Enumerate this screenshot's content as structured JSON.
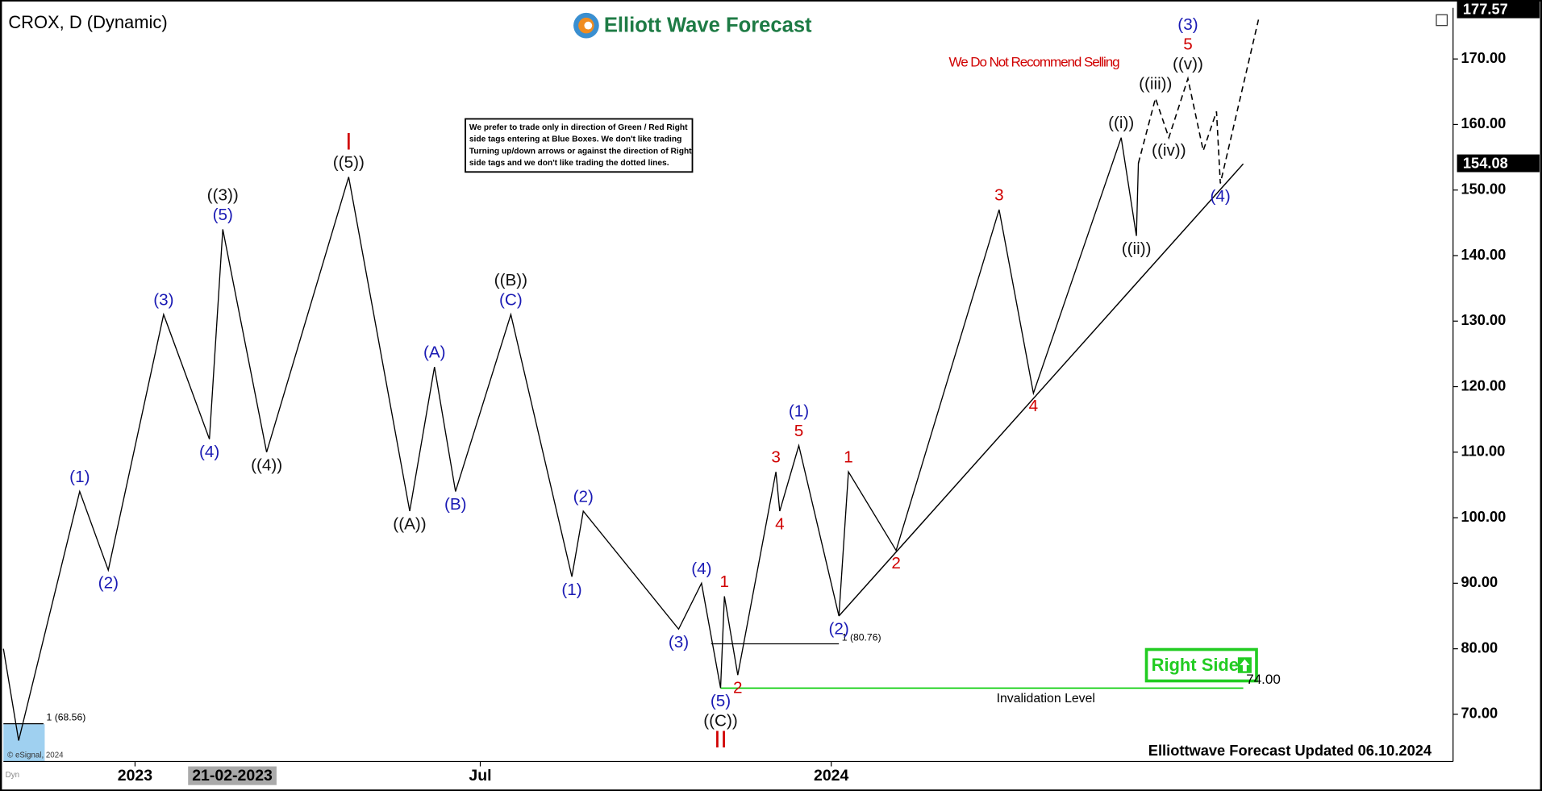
{
  "title": "CROX, D (Dynamic)",
  "logo": "Elliott Wave Forecast",
  "warning": "We Do Not Recommend Selling",
  "notice": [
    "We prefer to trade only in direction of Green / Red Right",
    "side tags entering at Blue Boxes. We don't like trading",
    "Turning up/down arrows or against the direction of Right",
    "side tags and we don't like trading the dotted lines."
  ],
  "right_side": "Right Side",
  "footer": "Elliottwave Forecast Updated 06.10.2024",
  "copyright": "© eSignal, 2024",
  "mode": "Dyn",
  "chart_data": {
    "type": "line",
    "xlim": [
      "24-10-2022",
      "22-11-2024"
    ],
    "ylim": [
      62.8,
      177.8
    ],
    "xticks": [
      {
        "value": "01-01-2023",
        "label": "2023"
      },
      {
        "value": "01-07-2023",
        "label": "Jul"
      },
      {
        "value": "01-01-2024",
        "label": "2024"
      }
    ],
    "cursor_x": "21-02-2023",
    "yticks": [
      {
        "value": 70,
        "label": "70.00"
      },
      {
        "value": 80,
        "label": "80.00"
      },
      {
        "value": 90,
        "label": "90.00"
      },
      {
        "value": 100,
        "label": "100.00"
      },
      {
        "value": 110,
        "label": "110.00"
      },
      {
        "value": 120,
        "label": "120.00"
      },
      {
        "value": 130,
        "label": "130.00"
      },
      {
        "value": 140,
        "label": "140.00"
      },
      {
        "value": 150,
        "label": "150.00"
      },
      {
        "value": 160,
        "label": "160.00"
      },
      {
        "value": 170,
        "label": "170.00"
      }
    ],
    "last_high": 177.57,
    "last_price": 154.08,
    "series": [
      {
        "color": "#000000",
        "dash": false,
        "x": [
          "24-10-2022",
          "01-11-2022",
          "03-12-2022",
          "18-12-2022",
          "16-01-2023",
          "09-02-2023",
          "16-02-2023",
          "11-03-2023",
          "23-04-2023",
          "25-05-2023",
          "07-06-2023",
          "18-06-2023",
          "17-07-2023",
          "18-08-2023",
          "24-08-2023",
          "13-10-2023",
          "25-10-2023",
          "04-11-2023",
          "06-11-2023",
          "13-11-2023",
          "03-12-2023",
          "05-12-2023",
          "15-12-2023",
          "05-01-2024",
          "10-01-2024",
          "04-02-2024",
          "29-03-2024",
          "16-04-2024",
          "01-06-2024",
          "09-06-2024",
          "10-06-2024"
        ],
        "values": [
          80,
          66,
          104,
          92,
          131,
          112,
          144,
          110,
          152,
          101,
          123,
          104,
          131,
          91,
          101,
          83,
          90,
          74,
          88,
          76,
          107,
          101,
          111,
          85,
          107,
          95,
          147,
          119,
          158,
          143,
          154.08
        ],
        "labels": [
          [],
          [],
          [
            {
              "text": "(1)",
              "color": "#1a1ab4"
            }
          ],
          [
            {
              "text": "(2)",
              "color": "#1a1ab4"
            }
          ],
          [
            {
              "text": "(3)",
              "color": "#1a1ab4"
            }
          ],
          [
            {
              "text": "(4)",
              "color": "#1a1ab4"
            }
          ],
          [
            {
              "text": "(5)",
              "color": "#1a1ab4"
            },
            {
              "text": "((3))",
              "color": "#111111"
            }
          ],
          [
            {
              "text": "((4))",
              "color": "#111111"
            }
          ],
          [
            {
              "text": "((5))",
              "color": "#111111"
            },
            {
              "text": "I",
              "color": "#d00000"
            }
          ],
          [
            {
              "text": "((A))",
              "color": "#111111"
            }
          ],
          [
            {
              "text": "(A)",
              "color": "#1a1ab4"
            }
          ],
          [
            {
              "text": "(B)",
              "color": "#1a1ab4"
            }
          ],
          [
            {
              "text": "(C)",
              "color": "#1a1ab4"
            },
            {
              "text": "((B))",
              "color": "#111111"
            }
          ],
          [
            {
              "text": "(1)",
              "color": "#1a1ab4"
            }
          ],
          [
            {
              "text": "(2)",
              "color": "#1a1ab4"
            }
          ],
          [
            {
              "text": "(3)",
              "color": "#1a1ab4"
            }
          ],
          [
            {
              "text": "(4)",
              "color": "#1a1ab4"
            }
          ],
          [
            {
              "text": "(5)",
              "color": "#1a1ab4"
            },
            {
              "text": "((C))",
              "color": "#111111"
            },
            {
              "text": "II",
              "color": "#d00000"
            }
          ],
          [
            {
              "text": "1",
              "color": "#d00000"
            }
          ],
          [
            {
              "text": "2",
              "color": "#d00000"
            }
          ],
          [
            {
              "text": "3",
              "color": "#d00000"
            }
          ],
          [
            {
              "text": "4",
              "color": "#d00000"
            }
          ],
          [
            {
              "text": "5",
              "color": "#d00000"
            },
            {
              "text": "(1)",
              "color": "#1a1ab4"
            }
          ],
          [
            {
              "text": "(2)",
              "color": "#1a1ab4"
            }
          ],
          [
            {
              "text": "1",
              "color": "#d00000"
            }
          ],
          [
            {
              "text": "2",
              "color": "#d00000"
            }
          ],
          [
            {
              "text": "3",
              "color": "#d00000"
            }
          ],
          [
            {
              "text": "4",
              "color": "#d00000"
            }
          ],
          [
            {
              "text": "((i))",
              "color": "#111111"
            }
          ],
          [
            {
              "text": "((ii))",
              "color": "#111111"
            }
          ],
          []
        ]
      },
      {
        "color": "#000000",
        "dash": true,
        "x": [
          "10-06-2024",
          "19-06-2024",
          "26-06-2024",
          "06-07-2024",
          "14-07-2024",
          "21-07-2024",
          "23-07-2024",
          "12-08-2024"
        ],
        "values": [
          154.08,
          164,
          158,
          167,
          156,
          162,
          151,
          176
        ],
        "labels": [
          [],
          [
            {
              "text": "((iii))",
              "color": "#111111"
            }
          ],
          [
            {
              "text": "((iv))",
              "color": "#111111"
            }
          ],
          [
            {
              "text": "((v))",
              "color": "#111111"
            },
            {
              "text": "5",
              "color": "#d00000"
            },
            {
              "text": "(3)",
              "color": "#1a1ab4"
            }
          ],
          [],
          [],
          [
            {
              "text": "(4)",
              "color": "#1a1ab4"
            }
          ],
          []
        ]
      }
    ],
    "levels": [
      {
        "label": "1 (68.56)",
        "value": 68.56,
        "from": "24-10-2022",
        "to": "14-11-2022",
        "color": "#000000"
      },
      {
        "label": "1 (80.76)",
        "value": 80.76,
        "from": "30-10-2023",
        "to": "05-01-2024",
        "color": "#000000"
      }
    ],
    "invalidation": {
      "label": "Invalidation Level",
      "value": 74,
      "value_label": "74.00",
      "from": "04-11-2023",
      "to": "04-08-2024",
      "color": "#00cc00"
    },
    "trendline": {
      "from": [
        "05-01-2024",
        85
      ],
      "to": [
        "04-08-2024",
        154
      ]
    }
  }
}
